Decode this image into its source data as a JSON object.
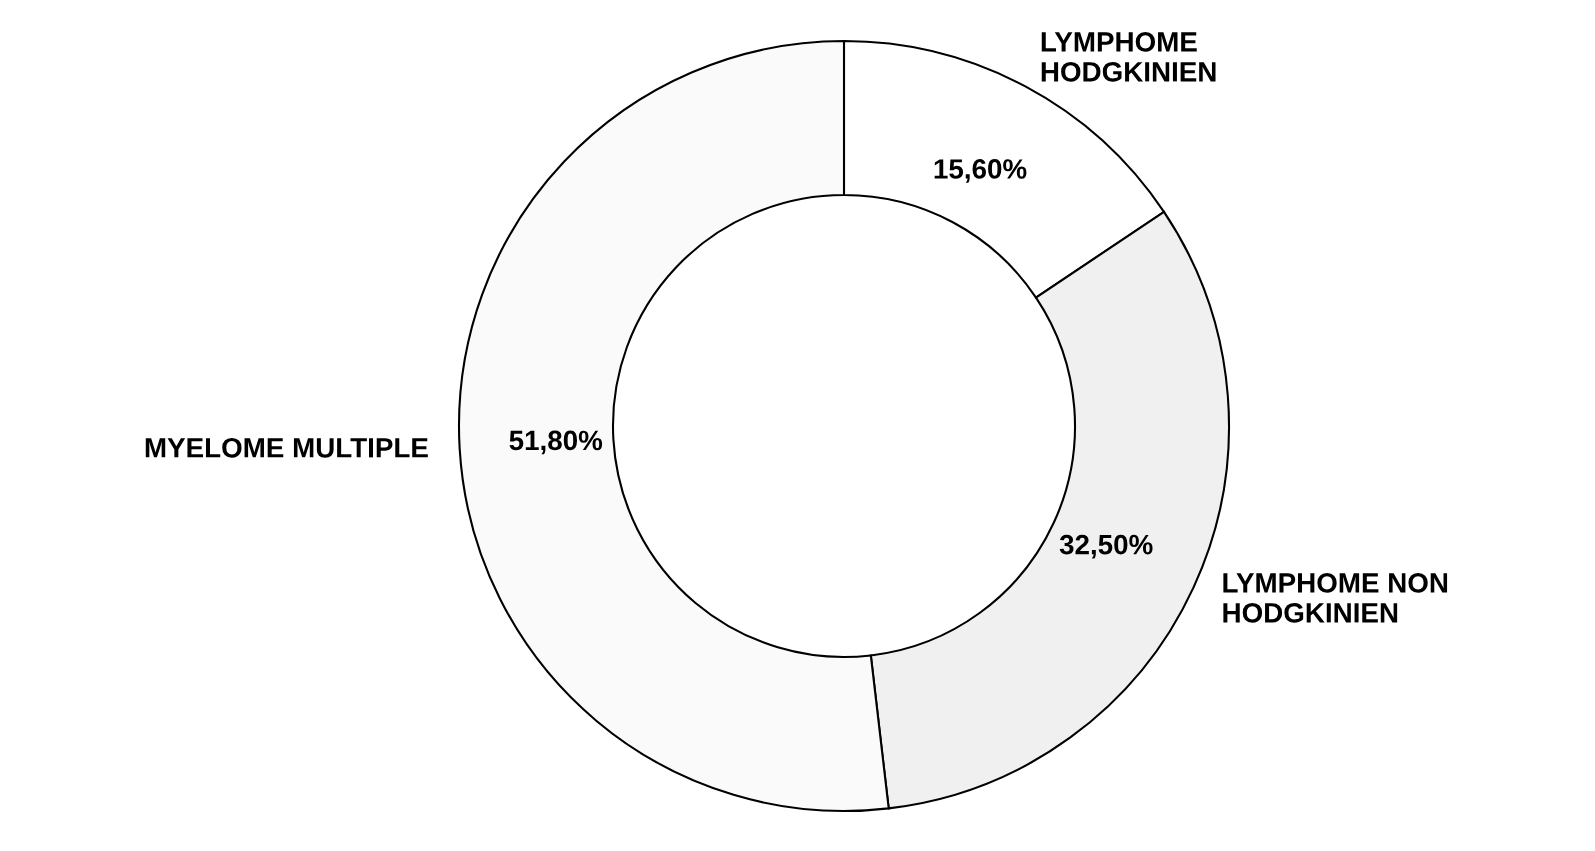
{
  "chart_data": {
    "type": "donut",
    "categories": [
      "LYMPHOME\nHODGKINIEN",
      "LYMPHOME NON\nHODGKINIEN",
      "MYELOME MULTIPLE"
    ],
    "values": [
      15.6,
      32.5,
      51.8
    ],
    "value_labels": [
      "15,60%",
      "32,50%",
      "51,80%"
    ],
    "colors": [
      "#ffffff",
      "#f0f0f0",
      "#fafafa"
    ],
    "legend": false
  }
}
